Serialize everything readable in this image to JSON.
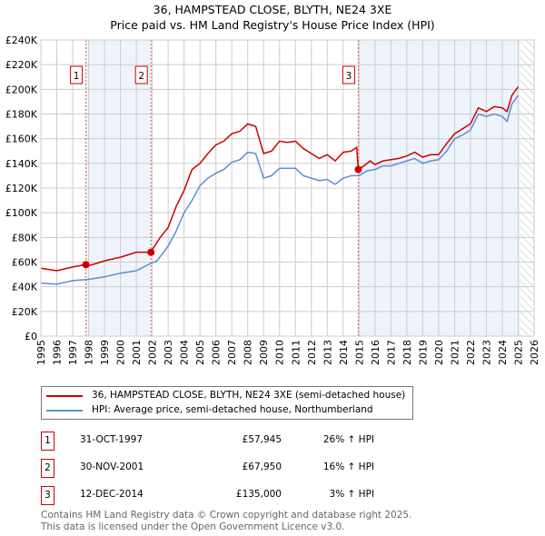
{
  "chart_data": {
    "type": "line",
    "title": "36, HAMPSTEAD CLOSE, BLYTH, NE24 3XE",
    "subtitle": "Price paid vs. HM Land Registry's House Price Index (HPI)",
    "xlim": [
      1995,
      2026
    ],
    "ylim": [
      0,
      240000
    ],
    "x_ticks": [
      "1995",
      "1996",
      "1997",
      "1998",
      "1999",
      "2000",
      "2001",
      "2002",
      "2003",
      "2004",
      "2005",
      "2006",
      "2007",
      "2008",
      "2009",
      "2010",
      "2011",
      "2012",
      "2013",
      "2014",
      "2015",
      "2016",
      "2017",
      "2018",
      "2019",
      "2020",
      "2021",
      "2022",
      "2023",
      "2024",
      "2025",
      "2026"
    ],
    "y_ticks": [
      "£0",
      "£20K",
      "£40K",
      "£60K",
      "£80K",
      "£100K",
      "£120K",
      "£140K",
      "£160K",
      "£180K",
      "£200K",
      "£220K",
      "£240K"
    ],
    "grid": true,
    "series": [
      {
        "name": "36, HAMPSTEAD CLOSE, BLYTH, NE24 3XE (semi-detached house)",
        "color": "#cc0000",
        "x": [
          1995,
          1996,
          1997,
          1997.83,
          1998,
          1999,
          2000,
          2001,
          2001.9,
          2002,
          2002.5,
          2003,
          2003.5,
          2004,
          2004.5,
          2005,
          2005.5,
          2006,
          2006.5,
          2007,
          2007.5,
          2008,
          2008.5,
          2009,
          2009.5,
          2010,
          2010.5,
          2011,
          2011.5,
          2012,
          2012.5,
          2013,
          2013.5,
          2014,
          2014.5,
          2014.85,
          2014.95,
          2015.3,
          2015.7,
          2016,
          2016.5,
          2017,
          2017.5,
          2018,
          2018.5,
          2019,
          2019.5,
          2020,
          2020.5,
          2021,
          2021.5,
          2022,
          2022.5,
          2023,
          2023.5,
          2024,
          2024.3,
          2024.6,
          2025
        ],
        "y": [
          55000,
          53000,
          56000,
          58000,
          57000,
          61000,
          64000,
          68000,
          68000,
          70000,
          80000,
          88000,
          105000,
          118000,
          135000,
          140000,
          148000,
          155000,
          158000,
          164000,
          166000,
          172000,
          170000,
          148000,
          150000,
          158000,
          157000,
          158000,
          152000,
          148000,
          144000,
          147000,
          142000,
          149000,
          150000,
          153000,
          135000,
          138000,
          142000,
          139000,
          142000,
          143000,
          144000,
          146000,
          149000,
          145000,
          147000,
          147000,
          156000,
          164000,
          168000,
          172000,
          185000,
          182000,
          186000,
          185000,
          182000,
          195000,
          202000
        ]
      },
      {
        "name": "HPI: Average price, semi-detached house, Northumberland",
        "color": "#5b8fd0",
        "x": [
          1995,
          1996,
          1997,
          1998,
          1999,
          2000,
          2001,
          2001.9,
          2002.3,
          2003,
          2003.5,
          2004,
          2004.5,
          2005,
          2005.5,
          2006,
          2006.5,
          2007,
          2007.5,
          2008,
          2008.5,
          2009,
          2009.5,
          2010,
          2010.5,
          2011,
          2011.5,
          2012,
          2012.5,
          2013,
          2013.5,
          2014,
          2014.5,
          2015,
          2015.5,
          2016,
          2016.5,
          2017,
          2017.5,
          2018,
          2018.5,
          2019,
          2019.5,
          2020,
          2020.5,
          2021,
          2021.5,
          2022,
          2022.5,
          2023,
          2023.5,
          2024,
          2024.3,
          2024.6,
          2025
        ],
        "y": [
          43000,
          42000,
          45000,
          46000,
          48000,
          51000,
          53000,
          59000,
          61000,
          73000,
          85000,
          100000,
          110000,
          122000,
          128000,
          132000,
          135000,
          141000,
          143000,
          149000,
          148000,
          128000,
          130000,
          136000,
          136000,
          136000,
          130000,
          128000,
          126000,
          127000,
          123000,
          128000,
          130000,
          130000,
          134000,
          135000,
          138000,
          138000,
          140000,
          142000,
          144000,
          140000,
          142000,
          143000,
          150000,
          160000,
          163000,
          167000,
          180000,
          178000,
          180000,
          178000,
          174000,
          188000,
          195000
        ]
      }
    ],
    "sales": [
      {
        "label": "1",
        "x": 1997.83,
        "price": 57945,
        "date": "31-OCT-1997",
        "price_text": "£57,945",
        "hpi": "26% ↑ HPI"
      },
      {
        "label": "2",
        "x": 2001.92,
        "price": 67950,
        "date": "30-NOV-2001",
        "price_text": "£67,950",
        "hpi": "16% ↑ HPI"
      },
      {
        "label": "3",
        "x": 2014.95,
        "price": 135000,
        "date": "12-DEC-2014",
        "price_text": "£135,000",
        "hpi": "3% ↑ HPI"
      }
    ],
    "shaded_ranges": [
      [
        1997.83,
        2001.92
      ],
      [
        2014.95,
        2025.1
      ]
    ],
    "hatched_from": 2025.1,
    "legend_placement": "below"
  },
  "footer": [
    "Contains HM Land Registry data © Crown copyright and database right 2025.",
    "This data is licensed under the Open Government Licence v3.0."
  ]
}
